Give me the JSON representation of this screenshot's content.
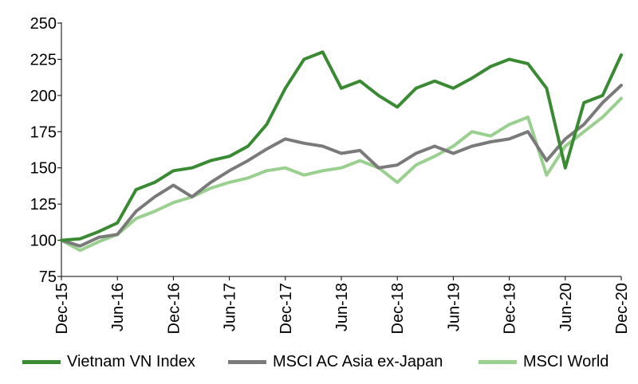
{
  "chart_data": {
    "type": "line",
    "title": "",
    "xlabel": "",
    "ylabel": "",
    "ylim": [
      75,
      250
    ],
    "yticks": [
      75,
      100,
      125,
      150,
      175,
      200,
      225,
      250
    ],
    "x_tick_labels": [
      "Dec-15",
      "Jun-16",
      "Dec-16",
      "Jun-17",
      "Dec-17",
      "Jun-18",
      "Dec-18",
      "Jun-19",
      "Dec-19",
      "Jun-20",
      "Dec-20"
    ],
    "grid": false,
    "legend_position": "bottom",
    "x": [
      "Dec-15",
      "Feb-16",
      "Apr-16",
      "Jun-16",
      "Aug-16",
      "Oct-16",
      "Dec-16",
      "Feb-17",
      "Apr-17",
      "Jun-17",
      "Aug-17",
      "Oct-17",
      "Dec-17",
      "Feb-18",
      "Apr-18",
      "Jun-18",
      "Aug-18",
      "Oct-18",
      "Dec-18",
      "Feb-19",
      "Apr-19",
      "Jun-19",
      "Aug-19",
      "Oct-19",
      "Dec-19",
      "Feb-20",
      "Apr-20",
      "Jun-20",
      "Aug-20",
      "Oct-20",
      "Dec-20"
    ],
    "series": [
      {
        "name": "Vietnam VN Index",
        "color": "#3a8a34",
        "values": [
          100,
          101,
          106,
          112,
          135,
          140,
          148,
          150,
          155,
          158,
          165,
          180,
          205,
          225,
          230,
          205,
          210,
          200,
          192,
          205,
          210,
          205,
          212,
          220,
          225,
          222,
          205,
          150,
          195,
          200,
          228
        ]
      },
      {
        "name": "MSCI AC Asia ex-Japan",
        "color": "#7a7a7a",
        "values": [
          100,
          96,
          102,
          104,
          120,
          130,
          138,
          130,
          140,
          148,
          155,
          163,
          170,
          167,
          165,
          160,
          162,
          150,
          152,
          160,
          165,
          160,
          165,
          168,
          170,
          175,
          155,
          170,
          180,
          195,
          207
        ]
      },
      {
        "name": "MSCI World",
        "color": "#9ad08f",
        "values": [
          100,
          93,
          99,
          104,
          115,
          120,
          126,
          130,
          136,
          140,
          143,
          148,
          150,
          145,
          148,
          150,
          155,
          150,
          140,
          152,
          158,
          165,
          175,
          172,
          180,
          185,
          145,
          165,
          175,
          185,
          198
        ]
      }
    ]
  }
}
